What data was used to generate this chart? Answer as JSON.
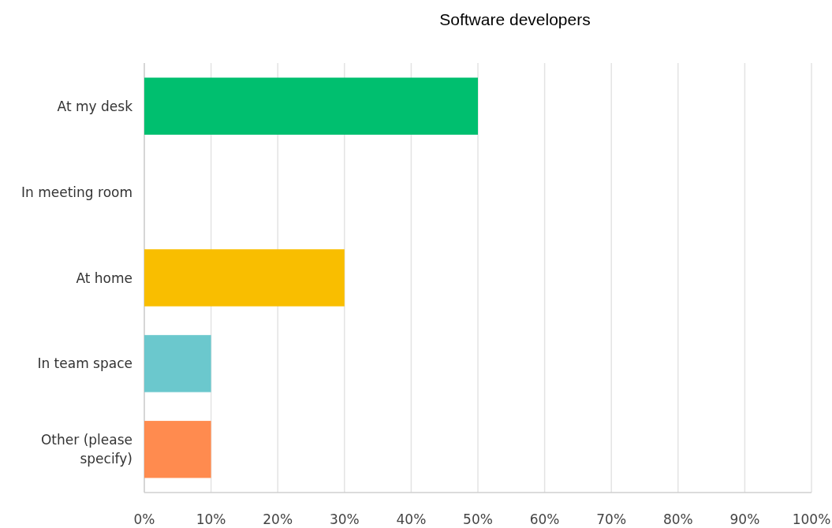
{
  "chart_data": {
    "type": "bar",
    "title": "Software developers",
    "orientation": "horizontal",
    "categories": [
      "At my desk",
      "In meeting room",
      "At home",
      "In team space",
      "Other (please specify)"
    ],
    "values": [
      50,
      0,
      30,
      10,
      10
    ],
    "colors": [
      "#00bf6f",
      "#507cb6",
      "#f9be00",
      "#6bc8cd",
      "#ff8b4f"
    ],
    "xlim": [
      0,
      100
    ],
    "xticks": [
      {
        "value": 0,
        "label": "0%"
      },
      {
        "value": 10,
        "label": "10%"
      },
      {
        "value": 20,
        "label": "20%"
      },
      {
        "value": 30,
        "label": "30%"
      },
      {
        "value": 40,
        "label": "40%"
      },
      {
        "value": 50,
        "label": "50%"
      },
      {
        "value": 60,
        "label": "60%"
      },
      {
        "value": 70,
        "label": "70%"
      },
      {
        "value": 80,
        "label": "80%"
      },
      {
        "value": 90,
        "label": "90%"
      },
      {
        "value": 100,
        "label": "100%"
      }
    ],
    "grid": "x"
  }
}
